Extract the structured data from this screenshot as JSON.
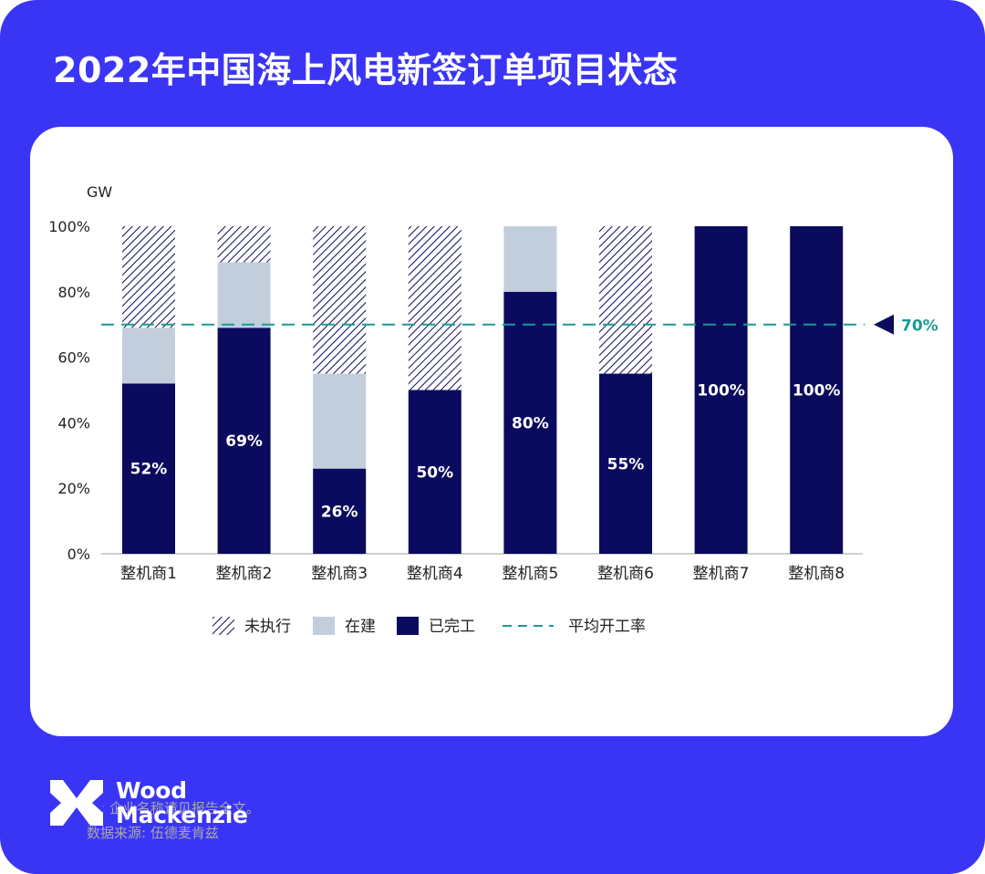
{
  "title": "2022年中国海上风电新签订单项目状态",
  "chart_data": {
    "type": "bar",
    "stacked": true,
    "unit_label": "GW",
    "categories": [
      "整机商1",
      "整机商2",
      "整机商3",
      "整机商4",
      "整机商5",
      "整机商6",
      "整机商7",
      "整机商8"
    ],
    "series": [
      {
        "name": "已完工",
        "values": [
          52,
          69,
          26,
          50,
          80,
          55,
          100,
          100
        ],
        "color": "#0a0a5e",
        "pattern": "solid"
      },
      {
        "name": "在建",
        "values": [
          17,
          20,
          29,
          0,
          20,
          0,
          0,
          0
        ],
        "color": "#c3cedd",
        "pattern": "solid"
      },
      {
        "name": "未执行",
        "values": [
          31,
          11,
          45,
          50,
          0,
          45,
          0,
          0
        ],
        "color": "#0a0a5e",
        "pattern": "hatch"
      }
    ],
    "data_labels": [
      "52%",
      "69%",
      "26%",
      "50%",
      "80%",
      "55%",
      "100%",
      "100%"
    ],
    "y_ticks": [
      "0%",
      "20%",
      "40%",
      "60%",
      "80%",
      "100%"
    ],
    "ylim": [
      0,
      100
    ],
    "reference_line": {
      "name": "平均开工率",
      "value": 70,
      "label": "70%",
      "color": "#1a9a96",
      "style": "dashed"
    },
    "legend": [
      "未执行",
      "在建",
      "已完工",
      "平均开工率"
    ],
    "legend_position": "bottom",
    "grid": false
  },
  "notes": [
    "注: 企业名称请见报告全文。",
    "数据来源: 伍德麦肯兹"
  ],
  "logo": {
    "line1": "Wood",
    "line2": "Mackenzie"
  }
}
